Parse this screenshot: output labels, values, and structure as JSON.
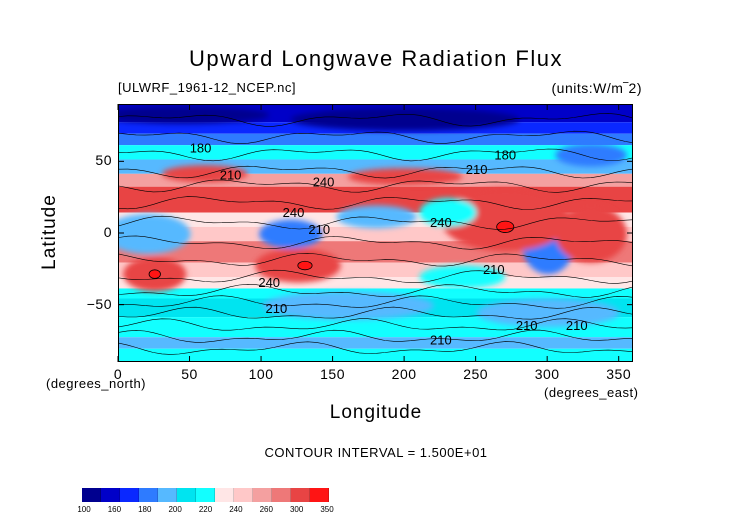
{
  "chart_data": {
    "type": "heatmap",
    "title": "Upward Longwave Radiation Flux",
    "subtitle_left": "[ULWRF_1961-12_NCEP.nc]",
    "subtitle_right": "(units:W/m^2)",
    "xlabel": "Longitude",
    "ylabel": "Latitude",
    "x_units": "(degrees_east)",
    "y_units": "(degrees_north)",
    "xlim": [
      0,
      360
    ],
    "ylim": [
      -90,
      90
    ],
    "x_ticks": [
      "0",
      "50",
      "100",
      "150",
      "200",
      "250",
      "300",
      "350"
    ],
    "x_tick_values": [
      0,
      50,
      100,
      150,
      200,
      250,
      300,
      350
    ],
    "y_ticks": [
      "50",
      "0",
      "−50"
    ],
    "y_tick_values": [
      50,
      0,
      -50
    ],
    "contour_interval": "CONTOUR INTERVAL = 1.500E+01",
    "contour_labels": [
      {
        "text": "180",
        "lon": 57,
        "lat": 57
      },
      {
        "text": "210",
        "lon": 78,
        "lat": 38
      },
      {
        "text": "240",
        "lon": 143,
        "lat": 33
      },
      {
        "text": "240",
        "lon": 122,
        "lat": 12
      },
      {
        "text": "210",
        "lon": 140,
        "lat": 0
      },
      {
        "text": "240",
        "lon": 225,
        "lat": 5
      },
      {
        "text": "180",
        "lon": 270,
        "lat": 52
      },
      {
        "text": "210",
        "lon": 250,
        "lat": 42
      },
      {
        "text": "210",
        "lon": 262,
        "lat": -28
      },
      {
        "text": "240",
        "lon": 105,
        "lat": -37
      },
      {
        "text": "210",
        "lon": 110,
        "lat": -55
      },
      {
        "text": "210",
        "lon": 285,
        "lat": -67
      },
      {
        "text": "210",
        "lon": 320,
        "lat": -67
      },
      {
        "text": "210",
        "lon": 225,
        "lat": -77
      }
    ],
    "colorbar": {
      "levels": [
        "100",
        "160",
        "180",
        "200",
        "220",
        "240",
        "260",
        "300",
        "350"
      ],
      "colors": [
        "#00008f",
        "#0000c8",
        "#0a28ff",
        "#2e7bff",
        "#56b9ff",
        "#00e4f0",
        "#12ffff",
        "#ffe6e6",
        "#ffc8c8",
        "#f4a0a0",
        "#ee7878",
        "#e84444",
        "#ff1414"
      ]
    },
    "grid": false
  }
}
